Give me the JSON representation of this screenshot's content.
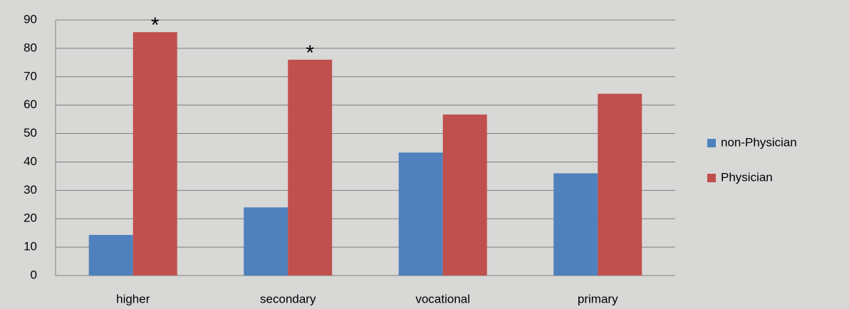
{
  "chart_data": {
    "type": "bar",
    "categories": [
      "higher",
      "secondary",
      "vocational",
      "primary"
    ],
    "series": [
      {
        "name": "non-Physician",
        "color": "#4f81bd",
        "values": [
          14.3,
          24,
          43.3,
          36
        ]
      },
      {
        "name": "Physician",
        "color": "#c0504d",
        "values": [
          85.7,
          76,
          56.7,
          64
        ]
      }
    ],
    "annotations": [
      {
        "text": "*",
        "category": "higher",
        "series": "Physician"
      },
      {
        "text": "*",
        "category": "secondary",
        "series": "Physician"
      }
    ],
    "ylim": [
      0,
      90
    ],
    "yticks": [
      0,
      10,
      20,
      30,
      40,
      50,
      60,
      70,
      80,
      90
    ],
    "grid": true,
    "legend": "right"
  }
}
